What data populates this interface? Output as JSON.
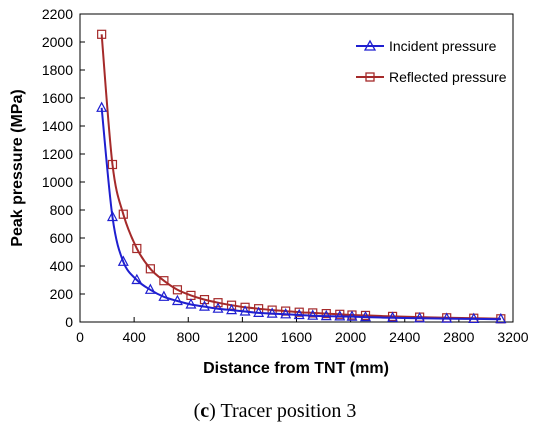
{
  "caption": {
    "letter": "c",
    "text": " Tracer position 3"
  },
  "chart_data": {
    "type": "line",
    "title": "",
    "xlabel": "Distance from TNT (mm)",
    "ylabel": "Peak pressure (MPa)",
    "xlim": [
      0,
      3200
    ],
    "ylim": [
      0,
      2200
    ],
    "xticks": [
      0,
      400,
      800,
      1200,
      1600,
      2000,
      2400,
      2800,
      3200
    ],
    "yticks": [
      0,
      200,
      400,
      600,
      800,
      1000,
      1200,
      1400,
      1600,
      1800,
      2000,
      2200
    ],
    "grid": false,
    "legend_position": "top-right",
    "series": [
      {
        "name": "Incident pressure",
        "color": "#1f1fd0",
        "marker": "triangle",
        "x": [
          160,
          240,
          320,
          420,
          520,
          620,
          720,
          820,
          920,
          1020,
          1120,
          1220,
          1320,
          1420,
          1520,
          1620,
          1720,
          1820,
          1920,
          2010,
          2110,
          2310,
          2510,
          2710,
          2910,
          3110
        ],
        "y": [
          1530,
          750,
          430,
          300,
          230,
          180,
          150,
          125,
          110,
          95,
          85,
          75,
          65,
          60,
          55,
          50,
          45,
          42,
          40,
          38,
          35,
          30,
          27,
          24,
          22,
          20
        ]
      },
      {
        "name": "Reflected pressure",
        "color": "#a52a2a",
        "marker": "square",
        "x": [
          160,
          240,
          320,
          420,
          520,
          620,
          720,
          820,
          920,
          1020,
          1120,
          1220,
          1320,
          1420,
          1520,
          1620,
          1720,
          1820,
          1920,
          2010,
          2110,
          2310,
          2510,
          2710,
          2910,
          3110
        ],
        "y": [
          2055,
          1125,
          770,
          525,
          380,
          295,
          230,
          190,
          160,
          138,
          120,
          105,
          95,
          85,
          78,
          70,
          65,
          60,
          55,
          50,
          47,
          40,
          35,
          30,
          27,
          23
        ]
      }
    ]
  }
}
